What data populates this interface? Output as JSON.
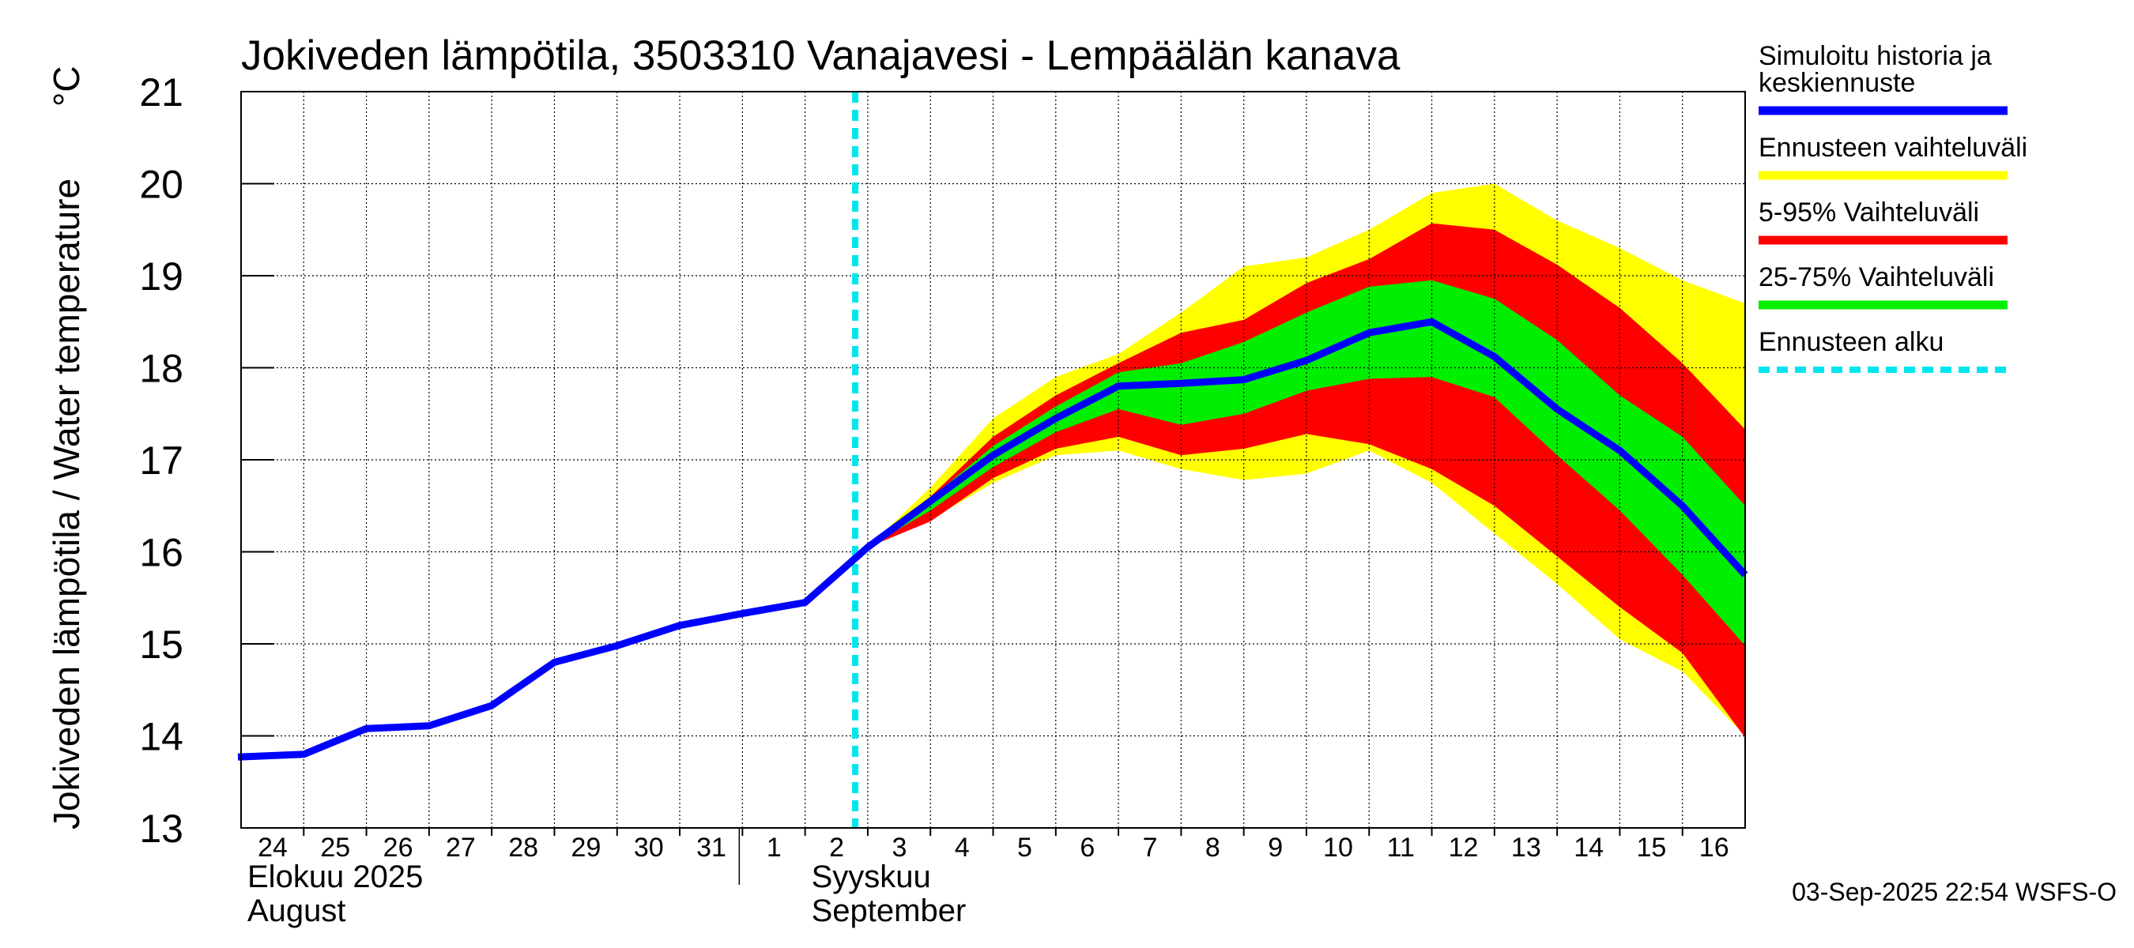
{
  "chart_data": {
    "type": "area",
    "title": "Jokiveden lämpötila, 3503310 Vanajavesi - Lempäälän kanava",
    "ylabel": "Jokiveden lämpötila / Water temperature",
    "yunit": "°C",
    "ylim": [
      13,
      21
    ],
    "yticks": [
      13,
      14,
      15,
      16,
      17,
      18,
      19,
      20,
      21
    ],
    "xlim": [
      0,
      24
    ],
    "grid": true,
    "day_ticks": [
      {
        "x": 0,
        "label": "24"
      },
      {
        "x": 1,
        "label": "25"
      },
      {
        "x": 2,
        "label": "26"
      },
      {
        "x": 3,
        "label": "27"
      },
      {
        "x": 4,
        "label": "28"
      },
      {
        "x": 5,
        "label": "29"
      },
      {
        "x": 6,
        "label": "30"
      },
      {
        "x": 7,
        "label": "31"
      },
      {
        "x": 8,
        "label": "1"
      },
      {
        "x": 9,
        "label": "2"
      },
      {
        "x": 10,
        "label": "3"
      },
      {
        "x": 11,
        "label": "4"
      },
      {
        "x": 12,
        "label": "5"
      },
      {
        "x": 13,
        "label": "6"
      },
      {
        "x": 14,
        "label": "7"
      },
      {
        "x": 15,
        "label": "8"
      },
      {
        "x": 16,
        "label": "9"
      },
      {
        "x": 17,
        "label": "10"
      },
      {
        "x": 18,
        "label": "11"
      },
      {
        "x": 19,
        "label": "12"
      },
      {
        "x": 20,
        "label": "13"
      },
      {
        "x": 21,
        "label": "14"
      },
      {
        "x": 22,
        "label": "15"
      },
      {
        "x": 23,
        "label": "16"
      }
    ],
    "month_labels": [
      {
        "x": 0,
        "fi": "Elokuu  2025",
        "en": "August"
      },
      {
        "x": 9,
        "fi": "Syyskuu",
        "en": "September"
      }
    ],
    "month_separator_x": 8,
    "forecast_start_x": 9.8,
    "series": [
      {
        "name": "Simuloitu historia ja keskiennuste",
        "type": "line",
        "color": "#0000ff",
        "x": [
          -0.05,
          1,
          2,
          3,
          4,
          5,
          6,
          7,
          8,
          9,
          10,
          11,
          12,
          13,
          14,
          15,
          16,
          17,
          18,
          19,
          20,
          21,
          22,
          23,
          24
        ],
        "values": [
          13.77,
          13.8,
          14.08,
          14.11,
          14.33,
          14.8,
          14.98,
          15.2,
          15.33,
          15.45,
          16.05,
          16.55,
          17.05,
          17.45,
          17.8,
          17.83,
          17.87,
          18.08,
          18.38,
          18.5,
          18.12,
          17.55,
          17.1,
          16.5,
          15.75
        ]
      },
      {
        "name": "Ennusteen vaihteluväli",
        "type": "band",
        "color": "#ffff00",
        "x": [
          10,
          11,
          12,
          13,
          14,
          15,
          16,
          17,
          18,
          19,
          20,
          21,
          22,
          23,
          24
        ],
        "upper": [
          16.05,
          16.7,
          17.45,
          17.9,
          18.15,
          18.6,
          19.1,
          19.2,
          19.5,
          19.9,
          20.0,
          19.6,
          19.3,
          18.95,
          18.7
        ],
        "lower": [
          16.05,
          16.35,
          16.75,
          17.05,
          17.1,
          16.9,
          16.78,
          16.85,
          17.1,
          16.75,
          16.2,
          15.65,
          15.05,
          14.7,
          14.0
        ]
      },
      {
        "name": "5-95% Vaihteluväli",
        "type": "band",
        "color": "#ff0000",
        "x": [
          10,
          11,
          12,
          13,
          14,
          15,
          16,
          17,
          18,
          19,
          20,
          21,
          22,
          23,
          24
        ],
        "upper": [
          16.05,
          16.6,
          17.25,
          17.7,
          18.05,
          18.38,
          18.52,
          18.92,
          19.18,
          19.57,
          19.5,
          19.12,
          18.65,
          18.05,
          17.33
        ],
        "lower": [
          16.05,
          16.33,
          16.8,
          17.12,
          17.25,
          17.05,
          17.12,
          17.28,
          17.17,
          16.9,
          16.5,
          15.95,
          15.4,
          14.9,
          13.98
        ]
      },
      {
        "name": "25-75% Vaihteluväli",
        "type": "band",
        "color": "#00ee00",
        "x": [
          10,
          11,
          12,
          13,
          14,
          15,
          16,
          17,
          18,
          19,
          20,
          21,
          22,
          23,
          24
        ],
        "upper": [
          16.05,
          16.58,
          17.15,
          17.58,
          17.95,
          18.05,
          18.28,
          18.6,
          18.88,
          18.95,
          18.75,
          18.3,
          17.7,
          17.25,
          16.5
        ],
        "lower": [
          16.05,
          16.45,
          16.92,
          17.3,
          17.55,
          17.38,
          17.5,
          17.75,
          17.88,
          17.9,
          17.68,
          17.05,
          16.45,
          15.75,
          14.98
        ]
      }
    ]
  },
  "legend": {
    "items": [
      {
        "label": "Simuloitu historia ja\nkeskiennuste",
        "color": "#0000ff",
        "style": "solid"
      },
      {
        "label": "Ennusteen vaihteluväli",
        "color": "#ffff00",
        "style": "solid"
      },
      {
        "label": "5-95% Vaihteluväli",
        "color": "#ff0000",
        "style": "solid"
      },
      {
        "label": "25-75% Vaihteluväli",
        "color": "#00ee00",
        "style": "solid"
      },
      {
        "label": "Ennusteen alku",
        "color": "#00e5ee",
        "style": "dashed"
      }
    ]
  },
  "footer": {
    "timestamp": "03-Sep-2025 22:54 WSFS-O"
  },
  "colors": {
    "forecast_start": "#00e5ee",
    "grid": "#000000",
    "background": "#ffffff"
  }
}
